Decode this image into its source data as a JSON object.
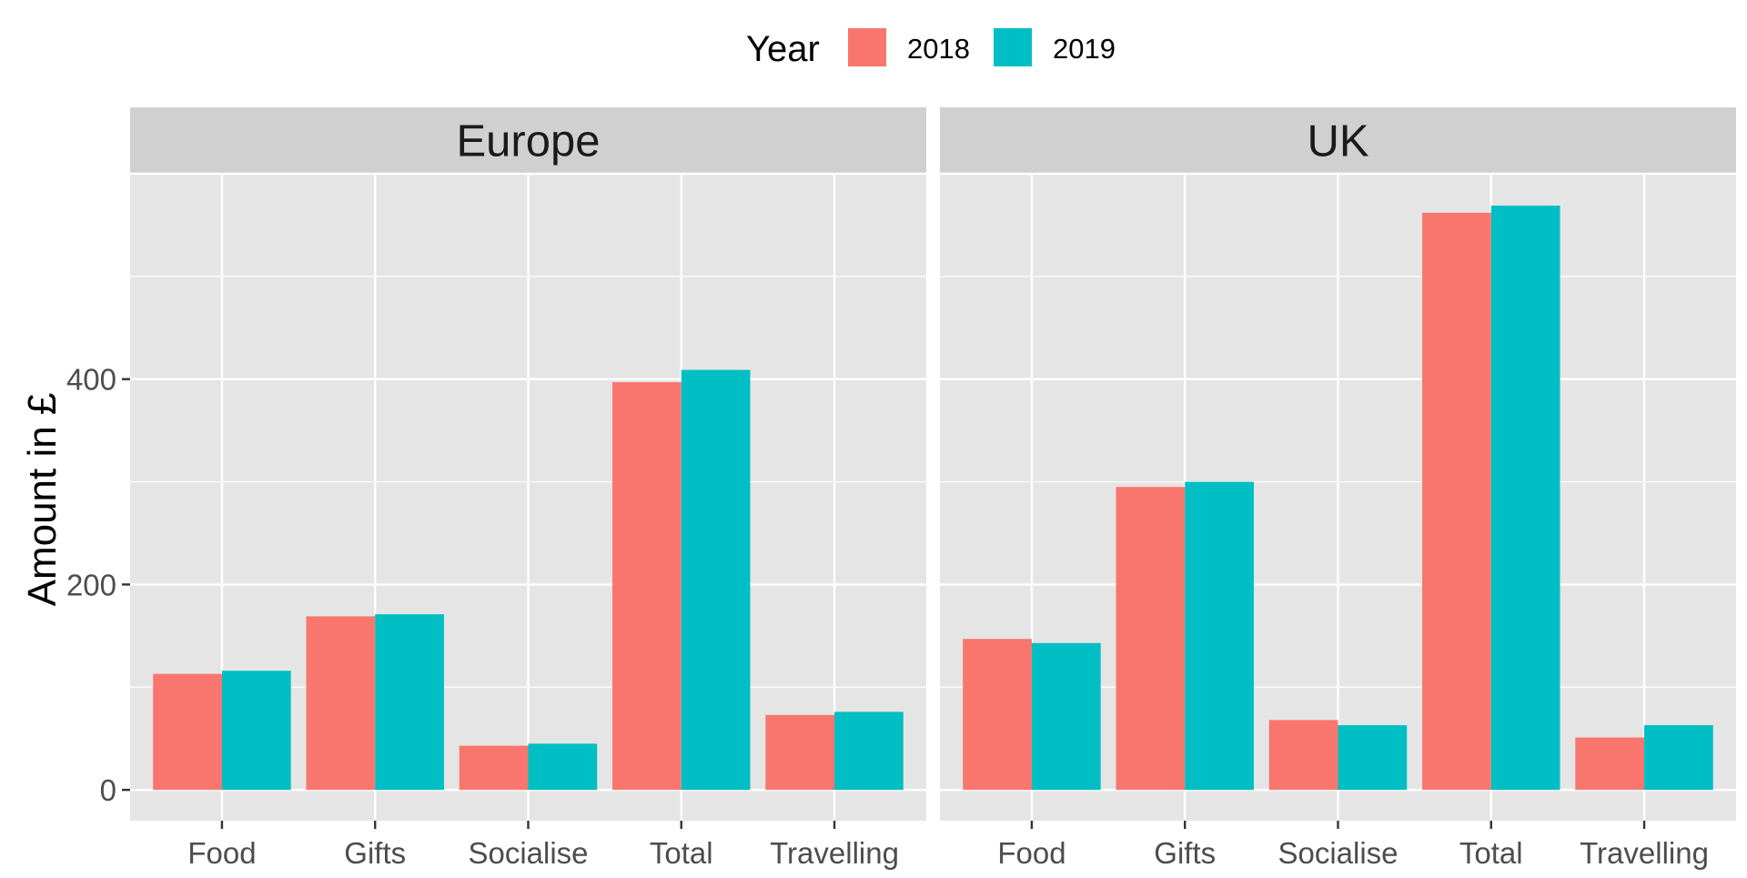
{
  "chart_data": {
    "type": "bar",
    "facets": [
      "Europe",
      "UK"
    ],
    "categories": [
      "Food",
      "Gifts",
      "Socialise",
      "Total",
      "Travelling"
    ],
    "series": [
      {
        "name": "2018",
        "color": "#F8766D",
        "values": {
          "Europe": [
            113,
            169,
            43,
            397,
            73
          ],
          "UK": [
            147,
            295,
            68,
            562,
            51
          ]
        }
      },
      {
        "name": "2019",
        "color": "#00BFC4",
        "values": {
          "Europe": [
            116,
            171,
            45,
            409,
            76
          ],
          "UK": [
            143,
            300,
            63,
            569,
            63
          ]
        }
      }
    ],
    "legend": {
      "title": "Year",
      "position": "top"
    },
    "xlabel": "",
    "ylabel": "Amount in £",
    "ylim": [
      -30,
      600
    ],
    "yticks": [
      0,
      200,
      400
    ],
    "grid": true
  }
}
